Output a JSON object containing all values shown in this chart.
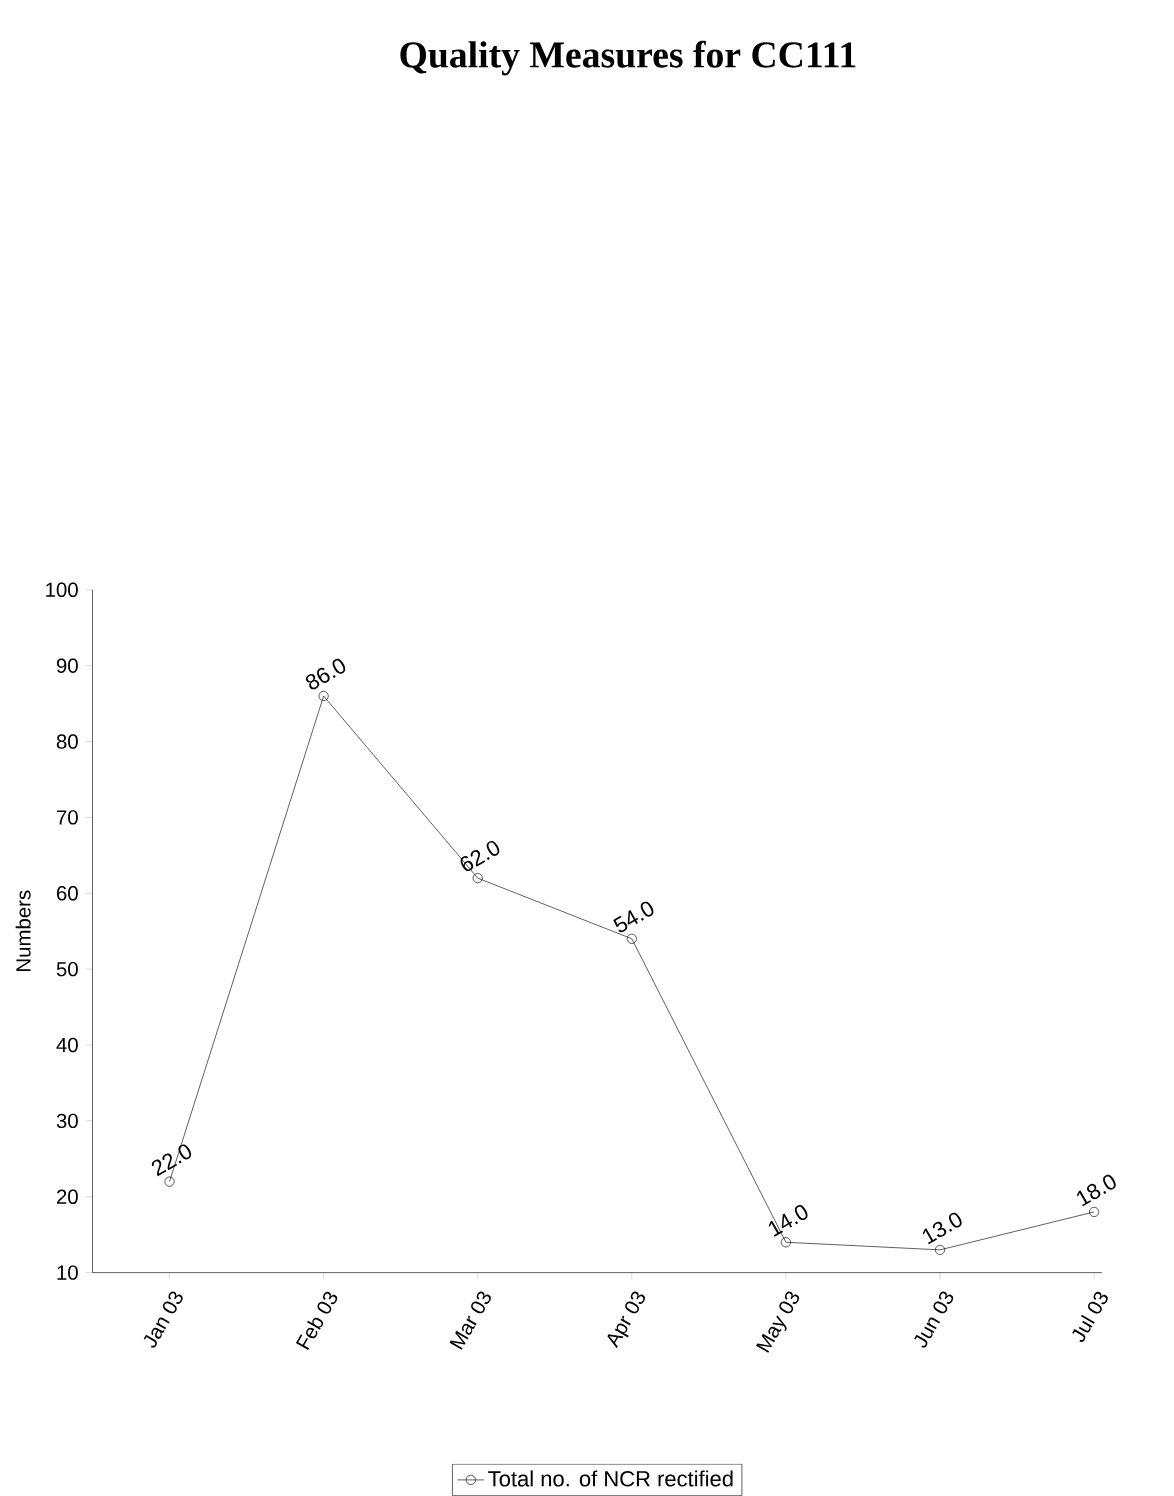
{
  "chart_data": {
    "type": "line",
    "title": "Quality Measures for CC111",
    "ylabel": "Numbers",
    "categories": [
      "Jan 03",
      "Feb 03",
      "Mar 03",
      "Apr 03",
      "May 03",
      "Jun 03",
      "Jul 03"
    ],
    "series": [
      {
        "name": "Total no. of NCR rectified",
        "color": "#000000",
        "values": [
          22,
          86,
          62,
          54,
          14,
          13,
          18
        ],
        "value_labels": [
          "22.0",
          "86.0",
          "62.0",
          "54.0",
          "14.0",
          "13.0",
          "18.0"
        ]
      }
    ],
    "ylim": [
      10,
      100
    ],
    "yticks": [
      10,
      20,
      30,
      40,
      50,
      60,
      70,
      80,
      90,
      100
    ],
    "legend": "bottom",
    "marker": "circle",
    "line_style": "solid",
    "grid": false
  }
}
